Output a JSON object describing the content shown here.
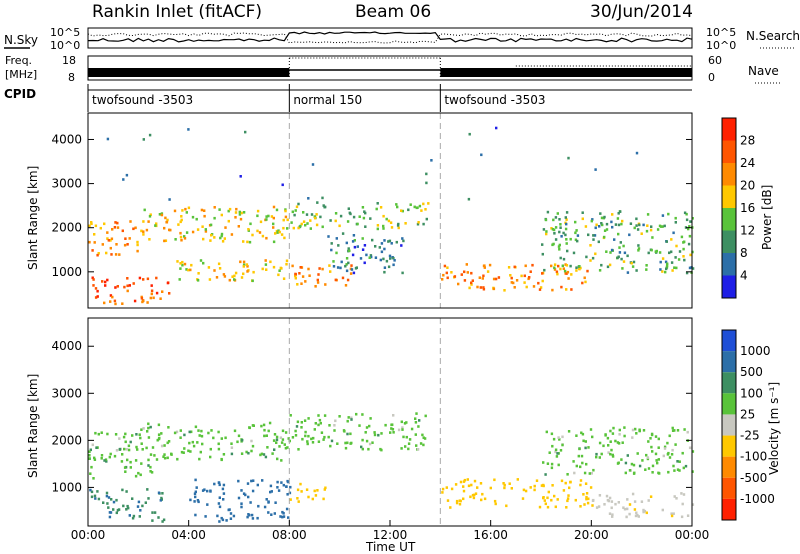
{
  "header": {
    "title": "Rankin Inlet (fitACF)",
    "beam": "Beam 06",
    "date": "30/Jun/2014"
  },
  "top_panels": {
    "nsky_label": "N.Sky",
    "nsearch_label": "N.Search",
    "freq_label_1": "Freq.",
    "freq_label_2": "[MHz]",
    "nave_label": "Nave",
    "cpid_label": "CPID",
    "nsky_ticks": [
      "10^5",
      "10^0"
    ],
    "nsearch_ticks": [
      "10^5",
      "10^0"
    ],
    "freq_ticks": [
      "18",
      "8"
    ],
    "nave_ticks": [
      "60",
      "0"
    ],
    "cpid_segments": [
      {
        "name": "twofsound -3503",
        "start": 0,
        "end": 8
      },
      {
        "name": "normal 150",
        "start": 8,
        "end": 14
      },
      {
        "name": "twofsound -3503",
        "start": 14,
        "end": 24
      }
    ]
  },
  "range_axis": {
    "label": "Slant Range [km]",
    "ticks": [
      "1000",
      "2000",
      "3000",
      "4000"
    ],
    "values": [
      1000,
      2000,
      3000,
      4000
    ],
    "range": [
      180,
      4600
    ]
  },
  "time_axis": {
    "label": "Time UT",
    "ticks": [
      "00:00",
      "04:00",
      "08:00",
      "12:00",
      "16:00",
      "20:00",
      "00:00"
    ],
    "hours": [
      0,
      4,
      8,
      12,
      16,
      20,
      24
    ],
    "range": [
      0,
      24
    ]
  },
  "power_scale": {
    "label": "Power [dB]",
    "ticks": [
      "4",
      "8",
      "12",
      "16",
      "20",
      "24",
      "28"
    ],
    "colors": [
      "#1f1fe6",
      "#2c6fa8",
      "#3d8f62",
      "#59c33a",
      "#ffc800",
      "#ff8a00",
      "#ff5500",
      "#ff2000"
    ]
  },
  "velocity_scale": {
    "label": "Velocity [m s⁻¹]",
    "ticks": [
      "1000",
      "500",
      "100",
      "25",
      "-25",
      "-100",
      "-500",
      "-1000"
    ],
    "colors": [
      "#1f4fd6",
      "#2c6fa8",
      "#3d8f62",
      "#59c33a",
      "#c8c8c0",
      "#ffc800",
      "#ff8a00",
      "#ff5500",
      "#ff2000"
    ]
  },
  "chart_data": [
    {
      "type": "heatmap",
      "name": "power",
      "x_unit": "hours UT",
      "y_unit": "km",
      "value_unit": "dB",
      "blobs": [
        {
          "t0": 0.0,
          "t1": 3.2,
          "r0": 300,
          "r1": 900,
          "v": 26
        },
        {
          "t0": 0.0,
          "t1": 2.0,
          "r0": 1400,
          "r1": 2200,
          "v": 22
        },
        {
          "t0": 2.0,
          "t1": 8.0,
          "r0": 1700,
          "r1": 2500,
          "v": 18
        },
        {
          "t0": 3.5,
          "t1": 8.0,
          "r0": 800,
          "r1": 1300,
          "v": 18
        },
        {
          "t0": 8.0,
          "t1": 10.5,
          "r0": 700,
          "r1": 1200,
          "v": 22
        },
        {
          "t0": 8.0,
          "t1": 13.5,
          "r0": 2000,
          "r1": 2600,
          "v": 14
        },
        {
          "t0": 9.5,
          "t1": 12.5,
          "r0": 1000,
          "r1": 1900,
          "v": 8
        },
        {
          "t0": 14.0,
          "t1": 20.0,
          "r0": 600,
          "r1": 1200,
          "v": 22
        },
        {
          "t0": 18.0,
          "t1": 24.0,
          "r0": 1000,
          "r1": 2400,
          "v": 12
        },
        {
          "t0": 0.0,
          "t1": 24.0,
          "r0": 2500,
          "r1": 4400,
          "v": 6
        }
      ]
    },
    {
      "type": "heatmap",
      "name": "velocity",
      "x_unit": "hours UT",
      "y_unit": "km",
      "value_unit": "m/s",
      "blobs": [
        {
          "t0": 0.0,
          "t1": 3.0,
          "r0": 300,
          "r1": 1000,
          "v": 80
        },
        {
          "t0": 0.0,
          "t1": 2.5,
          "r0": 1200,
          "r1": 2200,
          "v": 0
        },
        {
          "t0": 2.0,
          "t1": 8.0,
          "r0": 1600,
          "r1": 2400,
          "v": 0
        },
        {
          "t0": 4.0,
          "t1": 8.0,
          "r0": 300,
          "r1": 1200,
          "v": 150
        },
        {
          "t0": 8.0,
          "t1": 13.5,
          "r0": 1800,
          "r1": 2600,
          "v": 0
        },
        {
          "t0": 8.0,
          "t1": 9.5,
          "r0": 700,
          "r1": 1100,
          "v": -300
        },
        {
          "t0": 14.0,
          "t1": 20.0,
          "r0": 600,
          "r1": 1200,
          "v": -300
        },
        {
          "t0": 20.0,
          "t1": 24.0,
          "r0": 400,
          "r1": 900,
          "v": -80
        },
        {
          "t0": 18.0,
          "t1": 24.0,
          "r0": 1300,
          "r1": 2300,
          "v": 0
        }
      ]
    }
  ]
}
